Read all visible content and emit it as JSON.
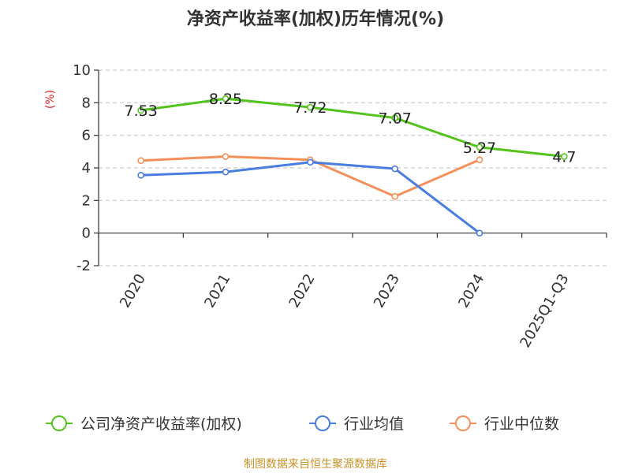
{
  "chart_data": {
    "type": "line",
    "title": "净资产收益率(加权)历年情况(%)",
    "ylabel": "(%)",
    "xlabel": "",
    "categories": [
      "2020",
      "2021",
      "2022",
      "2023",
      "2024",
      "2025Q1-Q3"
    ],
    "yticks": [
      "10",
      "8",
      "6",
      "4",
      "2",
      "0",
      "-2"
    ],
    "ylim": [
      -2,
      10
    ],
    "grid": true,
    "legend_position": "bottom",
    "series": [
      {
        "name": "公司净资产收益率(加权)",
        "color": "#52c41a",
        "values": [
          7.53,
          8.25,
          7.72,
          7.07,
          5.27,
          4.7
        ],
        "labels": [
          "7.53",
          "8.25",
          "7.72",
          "7.07",
          "5.27",
          "4.7"
        ]
      },
      {
        "name": "行业均值",
        "color": "#4a7de0",
        "values": [
          3.55,
          3.75,
          4.35,
          3.95,
          0.0,
          null
        ]
      },
      {
        "name": "行业中位数",
        "color": "#f4915a",
        "values": [
          4.45,
          4.7,
          4.5,
          2.25,
          4.5,
          null
        ]
      }
    ],
    "source": "制图数据来自恒生聚源数据库"
  }
}
